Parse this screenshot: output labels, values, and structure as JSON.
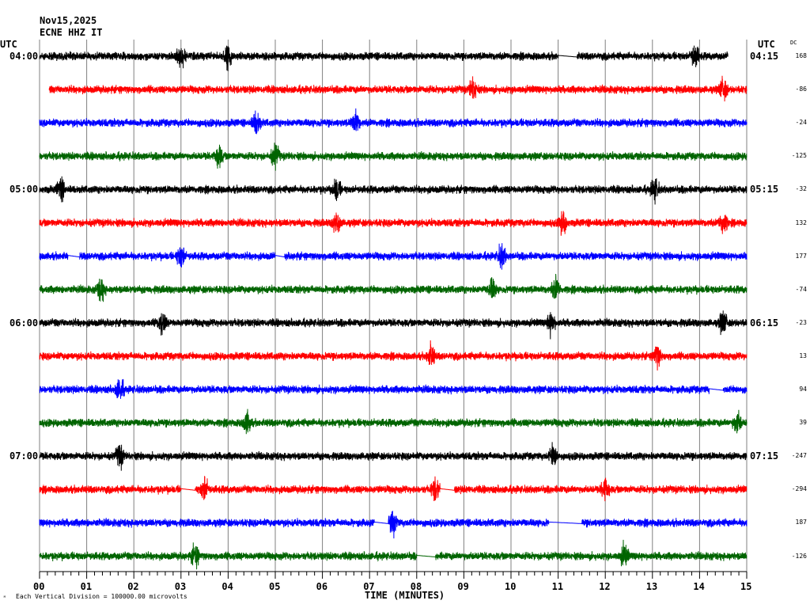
{
  "header": {
    "date": "Nov15,2025",
    "station": "ECNE HHZ IT"
  },
  "left_tz": "UTC",
  "right_tz": "UTC",
  "dc_label": "DC",
  "footer": {
    "scale_note": "Each Vertical Division = 100000.00 microvolts",
    "xlabel": "TIME (MINUTES)",
    "logo": "M"
  },
  "colors": {
    "cycle": [
      "#000000",
      "#ff0000",
      "#0000ff",
      "#006400"
    ],
    "grid": "#808080"
  },
  "chart_data": {
    "type": "line",
    "title": "ECNE HHZ IT Nov15,2025",
    "xlabel": "TIME (MINUTES)",
    "xlim": [
      0,
      15
    ],
    "x_ticks": [
      "00",
      "01",
      "02",
      "03",
      "04",
      "05",
      "06",
      "07",
      "08",
      "09",
      "10",
      "11",
      "12",
      "13",
      "14",
      "15"
    ],
    "minor_tick_seconds": 10,
    "left_hour_labels": [
      {
        "row": 0,
        "label": "04:00"
      },
      {
        "row": 4,
        "label": "05:00"
      },
      {
        "row": 8,
        "label": "06:00"
      },
      {
        "row": 12,
        "label": "07:00"
      }
    ],
    "right_hour_labels": [
      {
        "row": 0,
        "label": "04:15"
      },
      {
        "row": 4,
        "label": "05:15"
      },
      {
        "row": 8,
        "label": "06:15"
      },
      {
        "row": 12,
        "label": "07:15"
      }
    ],
    "rows": [
      {
        "dc": "168",
        "start": 0,
        "end": 14.6,
        "gaps": [
          [
            11.0,
            11.4
          ]
        ],
        "events": [
          3.0,
          4.0,
          13.9
        ]
      },
      {
        "dc": "-86",
        "start": 0.2,
        "end": 15,
        "gaps": [],
        "events": [
          9.2,
          14.5
        ]
      },
      {
        "dc": "-24",
        "start": 0,
        "end": 15,
        "gaps": [],
        "events": [
          4.6,
          6.7
        ]
      },
      {
        "dc": "-125",
        "start": 0,
        "end": 15,
        "gaps": [],
        "events": [
          3.8,
          5.0
        ]
      },
      {
        "dc": "-32",
        "start": 0,
        "end": 15,
        "gaps": [],
        "events": [
          0.45,
          6.3,
          13.05
        ]
      },
      {
        "dc": "132",
        "start": 0,
        "end": 15,
        "gaps": [],
        "events": [
          6.3,
          11.1,
          14.5
        ]
      },
      {
        "dc": "177",
        "start": 0,
        "end": 15,
        "gaps": [
          [
            0.6,
            0.85
          ],
          [
            5.0,
            5.2
          ]
        ],
        "events": [
          3.0,
          9.8
        ]
      },
      {
        "dc": "-74",
        "start": 0,
        "end": 15,
        "gaps": [],
        "events": [
          1.3,
          9.6,
          10.95
        ]
      },
      {
        "dc": "-23",
        "start": 0,
        "end": 15,
        "gaps": [],
        "events": [
          2.6,
          10.85,
          14.5
        ]
      },
      {
        "dc": "13",
        "start": 0,
        "end": 15,
        "gaps": [],
        "events": [
          8.3,
          13.1
        ]
      },
      {
        "dc": "94",
        "start": 0,
        "end": 15,
        "gaps": [
          [
            14.2,
            14.5
          ]
        ],
        "events": [
          1.7
        ]
      },
      {
        "dc": "39",
        "start": 0,
        "end": 15,
        "gaps": [],
        "events": [
          4.4,
          14.8
        ]
      },
      {
        "dc": "-247",
        "start": 0,
        "end": 15,
        "gaps": [],
        "events": [
          1.7,
          10.9
        ]
      },
      {
        "dc": "-294",
        "start": 0,
        "end": 15,
        "gaps": [
          [
            3.0,
            3.3
          ],
          [
            8.5,
            8.8
          ]
        ],
        "events": [
          3.5,
          8.4,
          12.0
        ]
      },
      {
        "dc": "187",
        "start": 0,
        "end": 15,
        "gaps": [
          [
            7.1,
            7.4
          ],
          [
            10.8,
            11.5
          ]
        ],
        "events": [
          7.5
        ]
      },
      {
        "dc": "-126",
        "start": 0,
        "end": 15,
        "gaps": [
          [
            8.0,
            8.4
          ]
        ],
        "events": [
          3.3,
          12.4
        ]
      }
    ]
  }
}
